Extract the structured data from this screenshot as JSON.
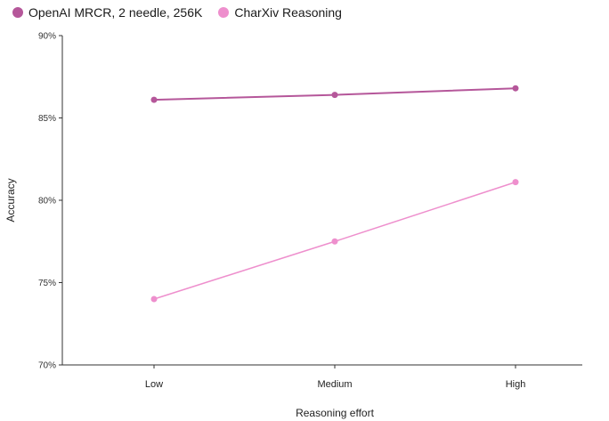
{
  "legend": {
    "items": [
      {
        "label": "OpenAI MRCR, 2 needle, 256K",
        "color": "#b5579a"
      },
      {
        "label": "CharXiv Reasoning",
        "color": "#ee8fcd"
      }
    ]
  },
  "chart_data": {
    "type": "line",
    "title": "",
    "xlabel": "Reasoning effort",
    "ylabel": "Accuracy",
    "categories": [
      "Low",
      "Medium",
      "High"
    ],
    "ylim": [
      70,
      90
    ],
    "yticks": [
      "70%",
      "75%",
      "80%",
      "85%",
      "90%"
    ],
    "ytick_values": [
      70,
      75,
      80,
      85,
      90
    ],
    "grid": false,
    "legend_position": "top-left",
    "series": [
      {
        "name": "OpenAI MRCR, 2 needle, 256K",
        "color": "#b5579a",
        "values": [
          86.1,
          86.4,
          86.8
        ]
      },
      {
        "name": "CharXiv Reasoning",
        "color": "#ee8fcd",
        "values": [
          74.0,
          77.5,
          81.1
        ]
      }
    ]
  }
}
